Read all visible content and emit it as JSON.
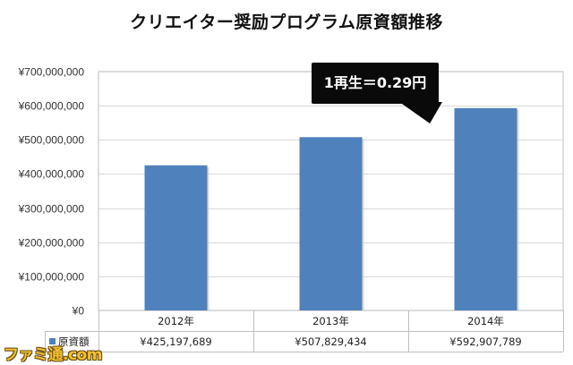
{
  "chart_data": {
    "type": "bar",
    "title": "クリエイター奨励プログラム原資額推移",
    "categories": [
      "2012年",
      "2013年",
      "2014年"
    ],
    "series": [
      {
        "name": "原資額",
        "values": [
          425197689,
          507829434,
          592907789
        ],
        "formatted": [
          "¥425,197,689",
          "¥507,829,434",
          "¥592,907,789"
        ],
        "color": "#4f81bd"
      }
    ],
    "ylim": [
      0,
      700000000
    ],
    "yticks": [
      0,
      100000000,
      200000000,
      300000000,
      400000000,
      500000000,
      600000000,
      700000000
    ],
    "ytick_labels": [
      "¥0",
      "¥100,000,000",
      "¥200,000,000",
      "¥300,000,000",
      "¥400,000,000",
      "¥500,000,000",
      "¥600,000,000",
      "¥700,000,000"
    ],
    "grid": true,
    "data_table": true,
    "annotation": "1再生＝0.29円"
  },
  "watermark": "ファミ通.com"
}
